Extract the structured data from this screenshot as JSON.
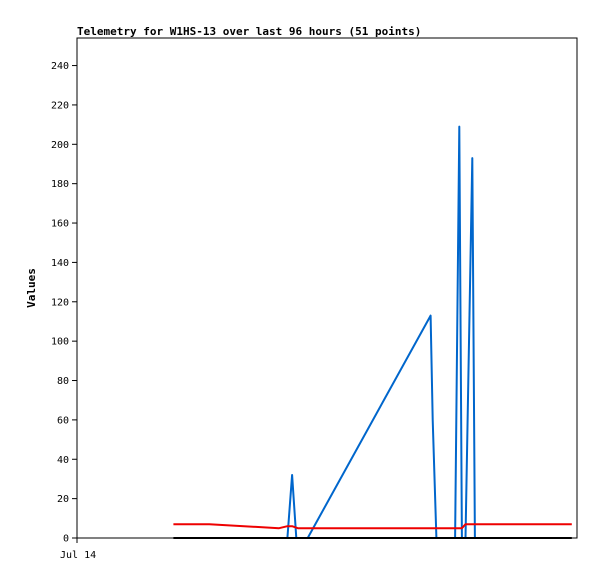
{
  "chart_data": {
    "type": "line",
    "title": "Telemetry for W1HS-13 over last 96 hours (51 points)",
    "xlabel": "",
    "ylabel": "Values",
    "x_tick_labels": [
      "Jul 14"
    ],
    "xlim": [
      0,
      96
    ],
    "ylim": [
      0,
      254
    ],
    "y_ticks": [
      0,
      20,
      40,
      60,
      80,
      100,
      120,
      140,
      160,
      180,
      200,
      220,
      240
    ],
    "grid": false,
    "legend": "none",
    "series": [
      {
        "color": "#0066cc",
        "x": [
          40.4,
          41.3,
          42.1,
          44.3,
          67.9,
          68.3,
          69.0,
          69.5,
          72.6,
          73.4,
          73.9,
          74.6,
          75.9,
          76.4,
          77.3,
          79.0
        ],
        "y": [
          0,
          32,
          0,
          0,
          113,
          60,
          0,
          0,
          0,
          209,
          0,
          0,
          193,
          0,
          0,
          0
        ]
      },
      {
        "color": "#ee0000",
        "x": [
          18.5,
          25.4,
          38.8,
          40.4,
          41.3,
          42.4,
          45.0,
          55.0,
          65.0,
          73.9,
          74.6,
          79.0,
          95.0
        ],
        "y": [
          7,
          7,
          5,
          6,
          6,
          5,
          5,
          5,
          5,
          5,
          7,
          7,
          7
        ]
      },
      {
        "color": "#000000",
        "x": [
          18.5,
          95.0
        ],
        "y": [
          0,
          0
        ]
      }
    ]
  }
}
